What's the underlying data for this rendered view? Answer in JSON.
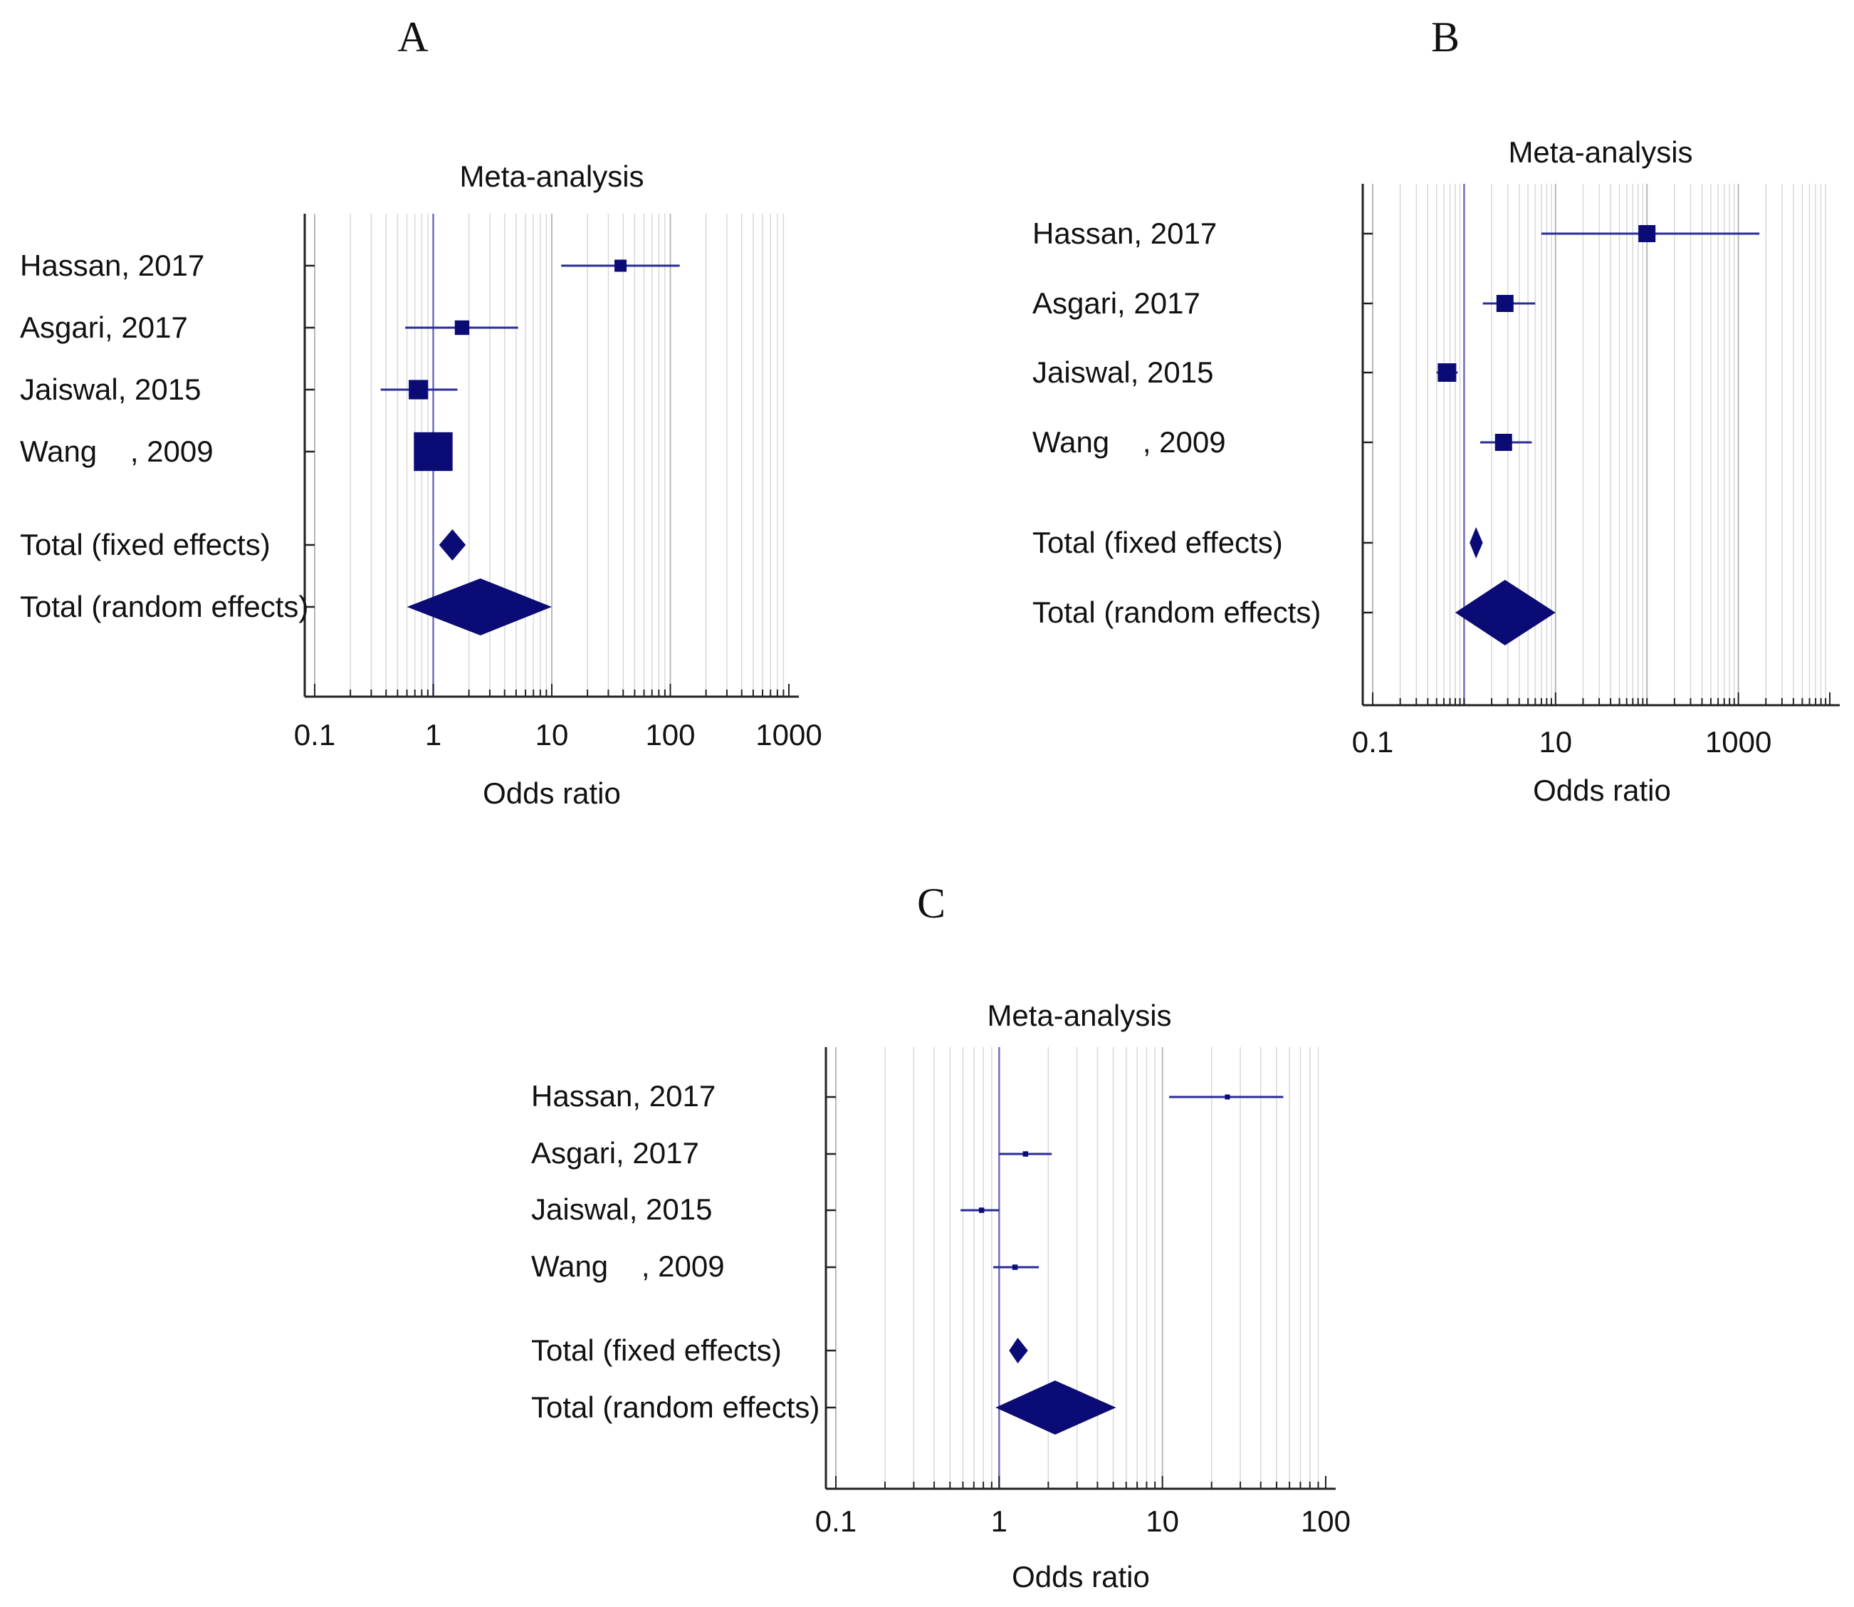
{
  "colors": {
    "mark": "#0b0b75",
    "ci_line": "#2b2b9a",
    "grid": "#d8d8d8",
    "grid_dark": "#b8b8b8",
    "ref_line": "#7070b8",
    "axis": "#222222",
    "text": "#111111"
  },
  "chart_data": [
    {
      "panel_label": "A",
      "type": "forest",
      "title": "Meta-analysis",
      "xlabel": "Odds ratio",
      "xscale": "log",
      "xlim": [
        0.1,
        1000
      ],
      "xticks": [
        0.1,
        1,
        10,
        100,
        1000
      ],
      "xtick_labels": [
        "0.1",
        "1",
        "10",
        "100",
        "1000"
      ],
      "reference": 1,
      "studies": [
        {
          "label": "Hassan, 2017",
          "or": 38,
          "lo": 12,
          "hi": 120,
          "weight": 1.0
        },
        {
          "label": "Asgari, 2017",
          "or": 1.75,
          "lo": 0.58,
          "hi": 5.2,
          "weight": 1.2
        },
        {
          "label": "Jaiswal, 2015",
          "or": 0.75,
          "lo": 0.36,
          "hi": 1.6,
          "weight": 1.6
        },
        {
          "label": "Wang    , 2009",
          "or": 1.0,
          "lo": 0.7,
          "hi": 1.4,
          "weight": 3.2
        }
      ],
      "totals": [
        {
          "label": "Total (fixed effects)",
          "or": 1.45,
          "lo": 1.12,
          "hi": 1.88
        },
        {
          "label": "Total (random effects)",
          "or": 2.5,
          "lo": 0.6,
          "hi": 10
        }
      ]
    },
    {
      "panel_label": "B",
      "type": "forest",
      "title": "Meta-analysis",
      "xlabel": "Odds ratio",
      "xscale": "log",
      "xlim": [
        0.1,
        10000
      ],
      "xticks": [
        0.1,
        10,
        1000
      ],
      "xtick_labels": [
        "0.1",
        "10",
        "1000"
      ],
      "reference": 1,
      "studies": [
        {
          "label": "Hassan, 2017",
          "or": 100,
          "lo": 7,
          "hi": 1700,
          "weight": 1.2
        },
        {
          "label": "Asgari, 2017",
          "or": 2.8,
          "lo": 1.6,
          "hi": 6,
          "weight": 1.2
        },
        {
          "label": "Jaiswal, 2015",
          "or": 0.65,
          "lo": 0.5,
          "hi": 0.85,
          "weight": 1.3
        },
        {
          "label": "Wang    , 2009",
          "or": 2.7,
          "lo": 1.5,
          "hi": 5.5,
          "weight": 1.2
        }
      ],
      "totals": [
        {
          "label": "Total (fixed effects)",
          "or": 1.35,
          "lo": 1.15,
          "hi": 1.6
        },
        {
          "label": "Total (random effects)",
          "or": 2.8,
          "lo": 0.8,
          "hi": 10
        }
      ]
    },
    {
      "panel_label": "C",
      "type": "forest",
      "title": "Meta-analysis",
      "xlabel": "Odds ratio",
      "xscale": "log",
      "xlim": [
        0.1,
        100
      ],
      "xticks": [
        0.1,
        1,
        10,
        100
      ],
      "xtick_labels": [
        "0.1",
        "1",
        "10",
        "100"
      ],
      "reference": 1,
      "studies": [
        {
          "label": "Hassan, 2017",
          "or": 25,
          "lo": 11,
          "hi": 55,
          "weight": 0.7
        },
        {
          "label": "Asgari, 2017",
          "or": 1.45,
          "lo": 1.0,
          "hi": 2.1,
          "weight": 0.75
        },
        {
          "label": "Jaiswal, 2015",
          "or": 0.78,
          "lo": 0.58,
          "hi": 1.0,
          "weight": 0.75
        },
        {
          "label": "Wang    , 2009",
          "or": 1.25,
          "lo": 0.92,
          "hi": 1.75,
          "weight": 0.75
        }
      ],
      "totals": [
        {
          "label": "Total (fixed effects)",
          "or": 1.3,
          "lo": 1.15,
          "hi": 1.5
        },
        {
          "label": "Total (random effects)",
          "or": 2.2,
          "lo": 0.95,
          "hi": 5.2
        }
      ]
    }
  ]
}
